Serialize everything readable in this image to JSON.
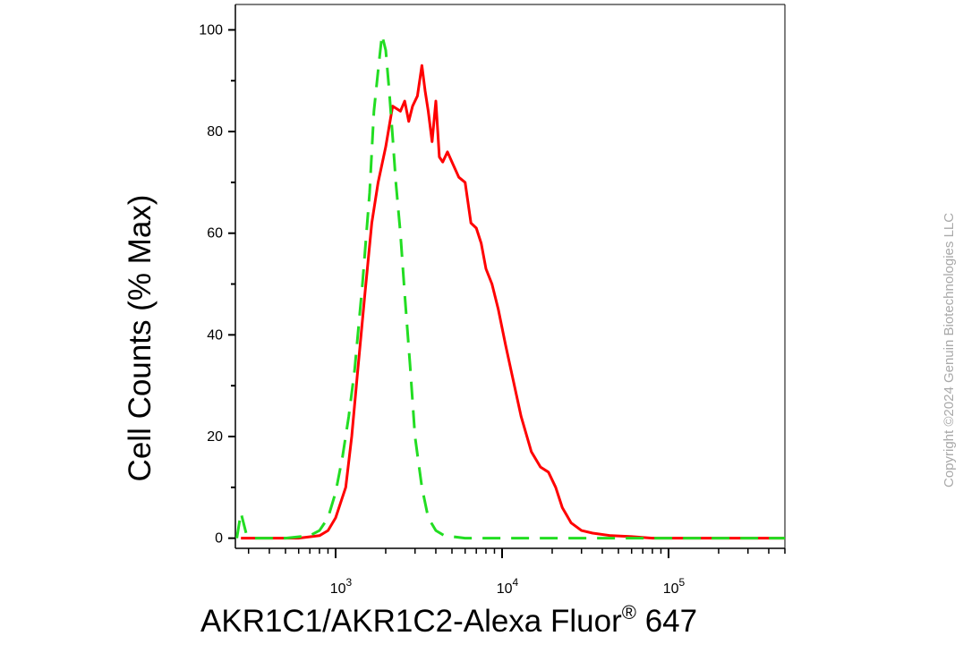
{
  "chart_data": {
    "type": "line",
    "xscale": "log",
    "xlabel_main": "AKR1C1/AKR1C2-Alexa Fluor",
    "xlabel_sup": "®",
    "xlabel_end": " 647",
    "ylabel": "Cell Counts (% Max)",
    "xlim": [
      250,
      500000
    ],
    "ylim": [
      -2,
      105
    ],
    "yticks": [
      0,
      20,
      40,
      60,
      80,
      100
    ],
    "xticks_major": [
      1000,
      10000,
      100000
    ],
    "xtick_labels": [
      {
        "base": "10",
        "exp": "3"
      },
      {
        "base": "10",
        "exp": "4"
      },
      {
        "base": "10",
        "exp": "5"
      }
    ],
    "grid": false,
    "series": [
      {
        "color": "#ff0000",
        "dash": "solid",
        "x": [
          270,
          600,
          800,
          900,
          1000,
          1150,
          1250,
          1350,
          1500,
          1650,
          1800,
          2000,
          2200,
          2450,
          2600,
          2750,
          2900,
          3100,
          3300,
          3450,
          3600,
          3800,
          4000,
          4200,
          4400,
          4700,
          5000,
          5500,
          6000,
          6500,
          7000,
          7500,
          8000,
          8700,
          9500,
          10500,
          11500,
          13000,
          15000,
          17000,
          19000,
          21000,
          23000,
          26000,
          30000,
          35000,
          45000,
          60000,
          80000,
          150000,
          300000,
          500000
        ],
        "values": [
          0,
          0,
          0.5,
          1.5,
          4,
          10,
          20,
          32,
          48,
          62,
          70,
          77,
          85,
          84,
          86,
          82,
          85,
          87,
          93,
          88,
          84,
          78,
          86,
          75,
          74,
          76,
          74,
          71,
          70,
          62,
          61,
          58,
          53,
          50,
          45,
          38,
          32,
          24,
          17,
          14,
          13,
          10,
          6,
          3,
          1.5,
          1,
          0.5,
          0.3,
          0,
          0,
          0,
          0
        ]
      },
      {
        "color": "#22dd22",
        "dash": "dashed",
        "x": [
          255,
          270,
          290,
          320,
          500,
          700,
          800,
          900,
          1000,
          1100,
          1200,
          1300,
          1450,
          1600,
          1700,
          1800,
          1900,
          2000,
          2100,
          2200,
          2300,
          2450,
          2600,
          2800,
          3000,
          3300,
          3600,
          4000,
          4500,
          6000,
          10000,
          50000,
          500000
        ],
        "values": [
          0,
          5,
          1,
          0,
          0,
          0.5,
          1.5,
          4,
          9,
          16,
          24,
          33,
          50,
          68,
          84,
          92,
          99,
          96,
          88,
          79,
          70,
          60,
          48,
          34,
          20,
          10,
          4,
          1.5,
          0.5,
          0,
          0,
          0,
          0
        ]
      }
    ]
  },
  "copyright": "Copyright ©2024 Genuin Biotechnologies LLC"
}
